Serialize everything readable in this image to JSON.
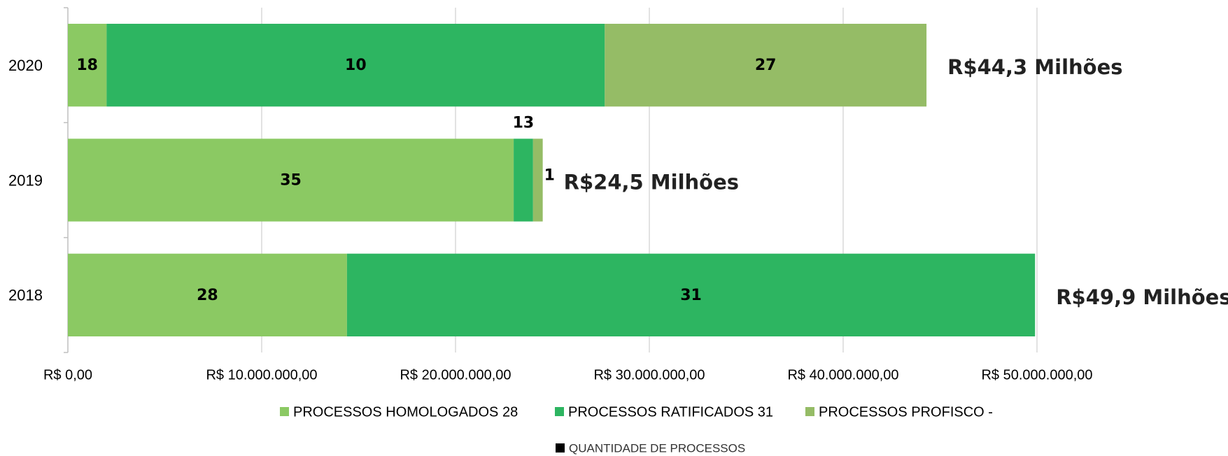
{
  "chart_data": {
    "type": "stacked-barh",
    "categories": [
      "2020",
      "2019",
      "2018"
    ],
    "series": [
      {
        "name": "PROCESSOS HOMOLOGADOS 28",
        "color": "#8bc963",
        "values": [
          2000000,
          23000000,
          14400000
        ],
        "labels": [
          "18",
          "35",
          "28"
        ]
      },
      {
        "name": "PROCESSOS RATIFICADOS 31",
        "color": "#2db561",
        "values": [
          25700000,
          1000000,
          35500000
        ],
        "labels": [
          "10",
          "13",
          "31"
        ]
      },
      {
        "name": "PROCESSOS PROFISCO -",
        "color": "#95bc66",
        "values": [
          16600000,
          500000,
          null
        ],
        "labels": [
          "27",
          "1",
          null
        ]
      },
      {
        "name": "QUANTIDADE DE PROCESSOS",
        "color": "#000000",
        "values": [
          null,
          null,
          null
        ]
      }
    ],
    "total_labels": [
      "R$44,3 Milhões",
      "R$24,5 Milhões",
      "R$49,9 Milhões"
    ],
    "xlim": [
      0,
      50000000
    ],
    "xticks": [
      {
        "value": 0,
        "label": "R$ 0,00"
      },
      {
        "value": 10000000,
        "label": "R$ 10.000.000,00"
      },
      {
        "value": 20000000,
        "label": "R$ 20.000.000,00"
      },
      {
        "value": 30000000,
        "label": "R$ 30.000.000,00"
      },
      {
        "value": 40000000,
        "label": "R$ 40.000.000,00"
      },
      {
        "value": 50000000,
        "label": "R$ 50.000.000,00"
      }
    ],
    "grid": true,
    "legend": "bottom"
  }
}
